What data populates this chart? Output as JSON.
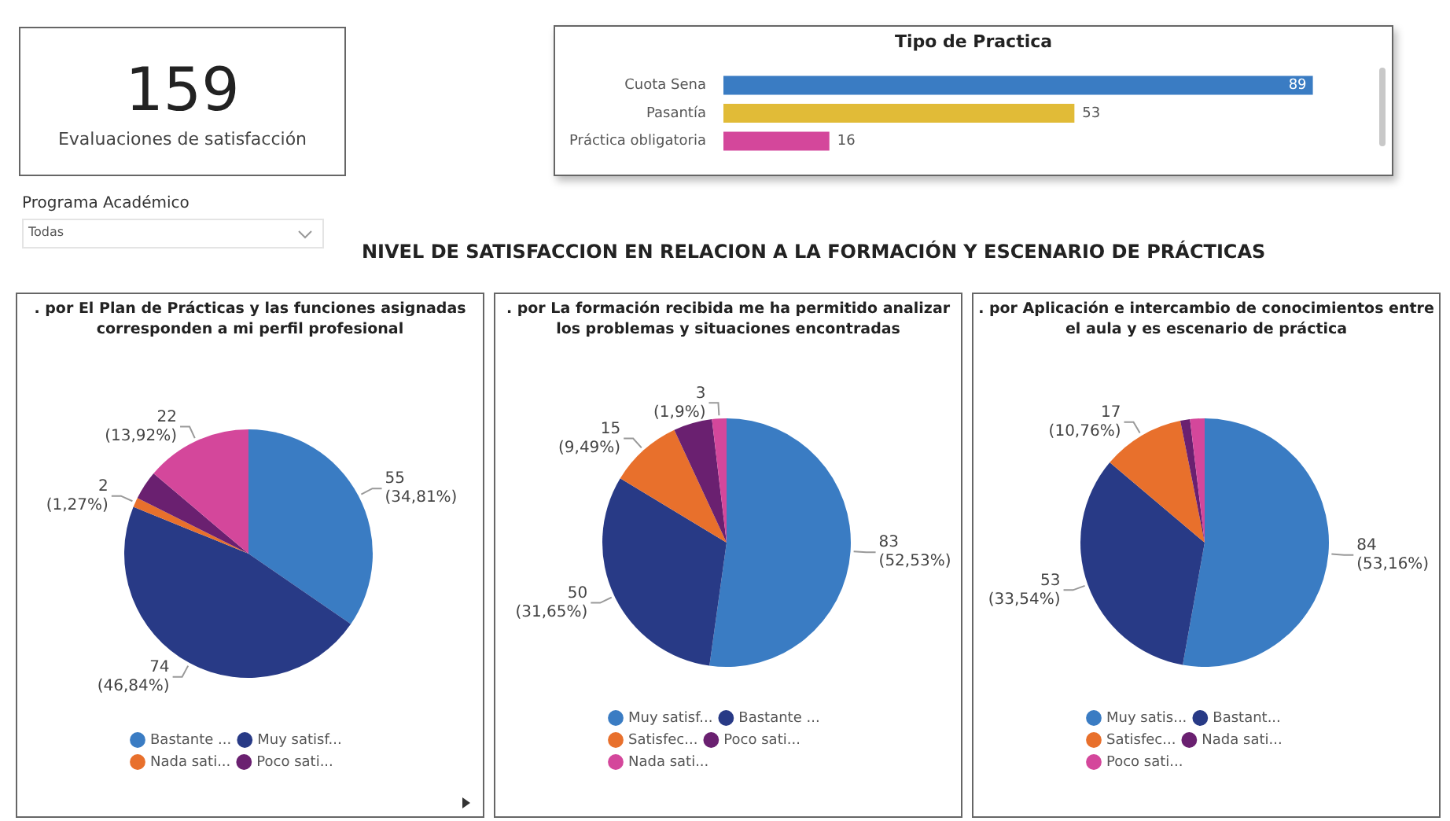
{
  "chart_data": [
    {
      "type": "other",
      "title": "159",
      "annotations": [
        "Evaluaciones de satisfacción"
      ]
    },
    {
      "type": "bar",
      "title": "Tipo de Practica",
      "orientation": "horizontal",
      "categories": [
        "Cuota Sena",
        "Pasantía",
        "Práctica obligatoria"
      ],
      "values": [
        89,
        53,
        16
      ],
      "colors": [
        "#3a7cc3",
        "#e1bb37",
        "#d4479b"
      ],
      "data_labels": true,
      "tick_labels": "y"
    },
    {
      "type": "other",
      "title": "Programa Académico",
      "annotations": [
        "Todas"
      ]
    },
    {
      "type": "other",
      "title": "NIVEL DE SATISFACCION EN RELACION A LA FORMACIÓN Y ESCENARIO DE PRÁCTICAS"
    },
    {
      "type": "pie",
      "title": ". por El Plan de Prácticas y las funciones asignadas corresponden a mi perfil profesional",
      "categories": [
        "Bastante ...",
        "Muy satisf...",
        "Nada sati...",
        "Poco sati...",
        null
      ],
      "values": [
        55,
        74,
        2,
        6,
        22
      ],
      "colors": [
        "#3a7cc3",
        "#283a86",
        "#e8702c",
        "#6a2070",
        "#d4479b"
      ],
      "value_labels": [
        "55 (34,81%)",
        "74 (46,84%)",
        "2 (1,27%)",
        null,
        "22 (13,92%)"
      ],
      "legend": "bottom"
    },
    {
      "type": "pie",
      "title": ". por La formación recibida me ha permitido analizar los problemas y situaciones encontradas",
      "categories": [
        "Muy satisf...",
        "Bastante ...",
        "Satisfec...",
        "Poco sati...",
        "Nada sati..."
      ],
      "values": [
        83,
        50,
        15,
        8,
        3
      ],
      "colors": [
        "#3a7cc3",
        "#283a86",
        "#e8702c",
        "#6a2070",
        "#d4479b"
      ],
      "value_labels": [
        "83 (52,53%)",
        "50 (31,65%)",
        "15 (9,49%)",
        null,
        "3 (1,9%)"
      ],
      "legend": "bottom"
    },
    {
      "type": "pie",
      "title": ". por Aplicación e intercambio de conocimientos entre el aula y es escenario de práctica",
      "categories": [
        "Muy satis...",
        "Bastant...",
        "Satisfec...",
        "Nada sati...",
        "Poco sati..."
      ],
      "values": [
        84,
        53,
        17,
        2,
        3
      ],
      "colors": [
        "#3a7cc3",
        "#283a86",
        "#e8702c",
        "#6a2070",
        "#d4479b"
      ],
      "value_labels": [
        "84 (53,16%)",
        "53 (33,54%)",
        "17 (10,76%)",
        null,
        null
      ],
      "legend": "bottom"
    }
  ]
}
